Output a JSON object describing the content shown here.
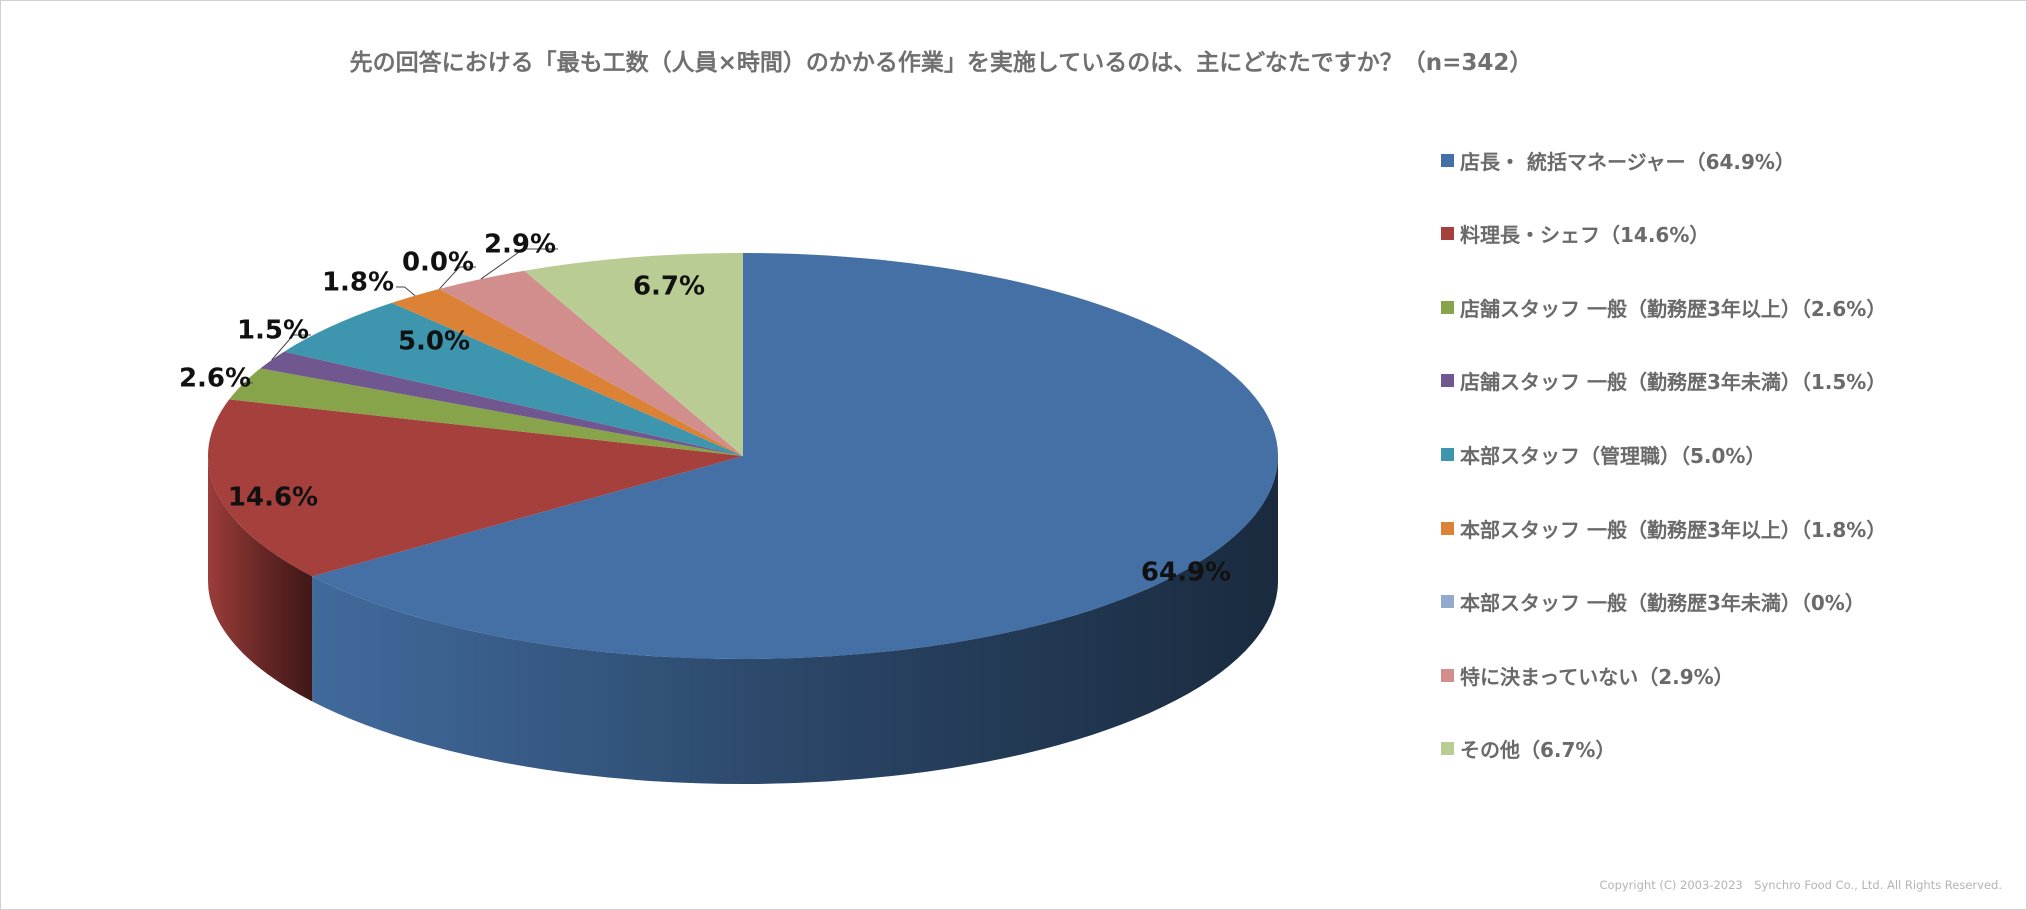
{
  "chart_data": {
    "type": "pie",
    "title": "先の回答における「最も工数（人員×時間）のかかる作業」を実施しているのは、主にどなたですか？（n=342）",
    "slices": [
      {
        "label": "店長・ 統括マネージャー（64.9%）",
        "value": 64.9,
        "data_label": "64.9%",
        "color": "#4470A5"
      },
      {
        "label": "料理長・シェフ（14.6%）",
        "value": 14.6,
        "data_label": "14.6%",
        "color": "#A5403D"
      },
      {
        "label": "店舗スタッフ 一般（勤務歴3年以上）（2.6%）",
        "value": 2.6,
        "data_label": "2.6%",
        "color": "#88A44A"
      },
      {
        "label": "店舗スタッフ 一般（勤務歴3年未満）（1.5%）",
        "value": 1.5,
        "data_label": "1.5%",
        "color": "#71578F"
      },
      {
        "label": "本部スタッフ（管理職）（5.0%）",
        "value": 5.0,
        "data_label": "5.0%",
        "color": "#3E96AE"
      },
      {
        "label": "本部スタッフ 一般（勤務歴3年以上）（1.8%）",
        "value": 1.8,
        "data_label": "1.8%",
        "color": "#DC8236"
      },
      {
        "label": "本部スタッフ 一般（勤務歴3年未満）（0%）",
        "value": 0.0,
        "data_label": "0.0%",
        "color": "#93A9D0"
      },
      {
        "label": "特に決まっていない（2.9%）",
        "value": 2.9,
        "data_label": "2.9%",
        "color": "#D28E8D"
      },
      {
        "label": "その他（6.7%）",
        "value": 6.7,
        "data_label": "6.7%",
        "color": "#B9CC93"
      }
    ],
    "legend_position": "right",
    "style": "3d-pie"
  },
  "copyright": "Copyright (C) 2003-2023　Synchro Food Co., Ltd. All Rights Reserved."
}
